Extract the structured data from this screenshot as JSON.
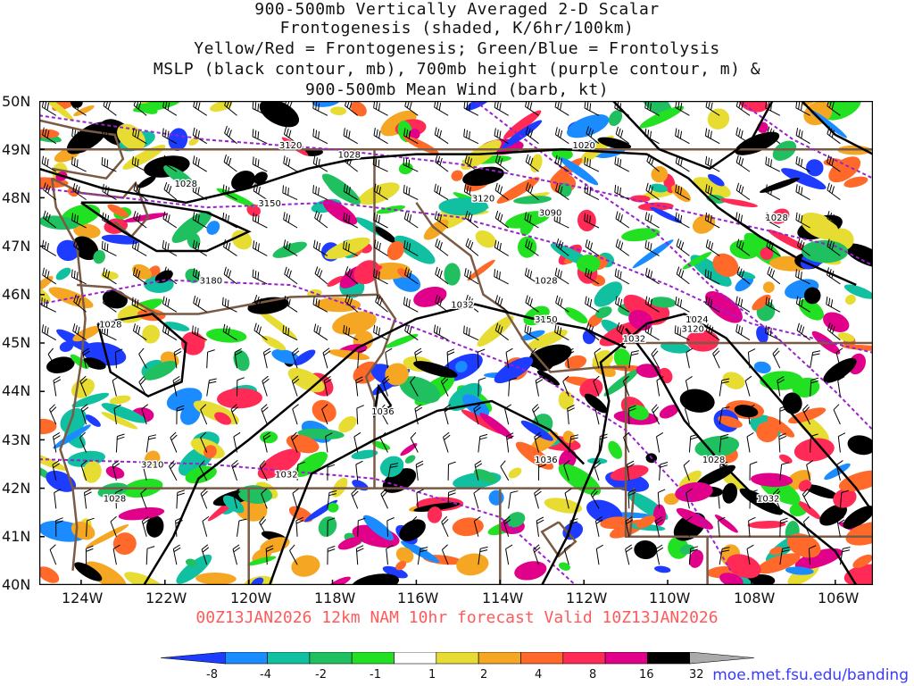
{
  "title": {
    "lines": [
      "900-500mb Vertically Averaged 2-D Scalar",
      "Frontogenesis (shaded, K/6hr/100km)",
      "Yellow/Red = Frontogenesis;  Green/Blue = Frontolysis",
      "MSLP (black contour, mb), 700mb height (purple contour, m) &",
      "900-500mb Mean Wind (barb, kt)"
    ]
  },
  "footer": "00Z13JAN2026 12km NAM 10hr forecast Valid 10Z13JAN2026",
  "source_url": "moe.met.fsu.edu/banding",
  "map": {
    "lat_labels": [
      "50N",
      "49N",
      "48N",
      "47N",
      "46N",
      "45N",
      "44N",
      "43N",
      "42N",
      "41N",
      "40N"
    ],
    "lon_labels": [
      "124W",
      "122W",
      "120W",
      "118W",
      "116W",
      "114W",
      "112W",
      "110W",
      "108W",
      "106W"
    ],
    "mslp_labels": [
      {
        "text": "1028",
        "lon": -121.5,
        "lat": 48.3
      },
      {
        "text": "1028",
        "lon": -117.6,
        "lat": 48.9
      },
      {
        "text": "1020",
        "lon": -112.0,
        "lat": 49.1
      },
      {
        "text": "1028",
        "lon": -112.9,
        "lat": 46.3
      },
      {
        "text": "1032",
        "lon": -114.9,
        "lat": 45.8
      },
      {
        "text": "1032",
        "lon": -110.8,
        "lat": 45.1
      },
      {
        "text": "1024",
        "lon": -109.3,
        "lat": 45.5
      },
      {
        "text": "1028",
        "lon": -123.3,
        "lat": 45.4
      },
      {
        "text": "1036",
        "lon": -116.8,
        "lat": 43.6
      },
      {
        "text": "1036",
        "lon": -112.9,
        "lat": 42.6
      },
      {
        "text": "1028",
        "lon": -108.9,
        "lat": 42.6
      },
      {
        "text": "1032",
        "lon": -107.6,
        "lat": 41.8
      },
      {
        "text": "1032",
        "lon": -119.1,
        "lat": 42.3
      },
      {
        "text": "1028",
        "lon": -123.2,
        "lat": 41.8
      },
      {
        "text": "1028",
        "lon": -107.4,
        "lat": 47.6
      }
    ],
    "height_labels": [
      {
        "text": "3120",
        "lon": -119.0,
        "lat": 49.1
      },
      {
        "text": "3150",
        "lon": -119.5,
        "lat": 47.9
      },
      {
        "text": "3120",
        "lon": -114.4,
        "lat": 48.0
      },
      {
        "text": "3090",
        "lon": -112.8,
        "lat": 47.7
      },
      {
        "text": "3180",
        "lon": -120.9,
        "lat": 46.3
      },
      {
        "text": "3150",
        "lon": -112.9,
        "lat": 45.5
      },
      {
        "text": "3120",
        "lon": -109.4,
        "lat": 45.3
      },
      {
        "text": "3210",
        "lon": -122.3,
        "lat": 42.5
      }
    ]
  },
  "colorbar": {
    "labels": [
      "-8",
      "-4",
      "-2",
      "-1",
      "1",
      "2",
      "4",
      "8",
      "16",
      "32"
    ],
    "colors": [
      "#1e3cff",
      "#1a8cff",
      "#10c0a0",
      "#20c060",
      "#22e022",
      "#ffffff",
      "#e6dc32",
      "#f5a623",
      "#ff6a2a",
      "#ff2a55",
      "#e0008a",
      "#000000",
      "#aaaaaa"
    ]
  },
  "colors": {
    "map_border": "#7a5a44",
    "mslp": "#000000",
    "height": "#9a22cc",
    "footer": "#ff5a5a",
    "url": "#3a3aff"
  }
}
